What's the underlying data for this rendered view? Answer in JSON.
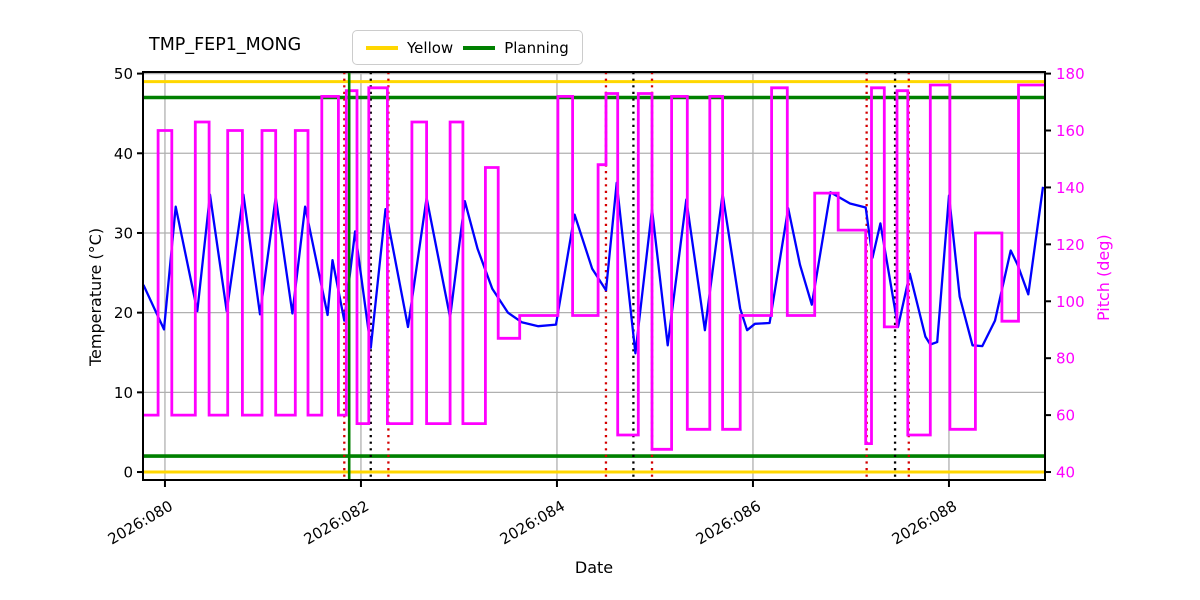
{
  "chart_data": {
    "type": "line",
    "title": "TMP_FEP1_MONG",
    "xlabel": "Date",
    "ylabel_left": "Temperature (°C)",
    "ylabel_right": "Pitch (deg)",
    "grid": true,
    "xlim": [
      79.776,
      88.98
    ],
    "ylim_temp": [
      -1,
      50.2
    ],
    "pitch_axis_mapping": "pitch = temp * 2.8 + 40",
    "x_ticks": {
      "days": [
        80,
        82,
        84,
        86,
        88
      ],
      "labels": [
        "2026:080",
        "2026:082",
        "2026:084",
        "2026:086",
        "2026:088"
      ]
    },
    "temp_ticks": [
      0,
      10,
      20,
      30,
      40,
      50
    ],
    "pitch_ticks": [
      40,
      60,
      80,
      100,
      120,
      140,
      160,
      180
    ],
    "colors": {
      "temperature": "#0000FF",
      "pitch": "#FF00FF",
      "yellow_limit": "#FFD700",
      "planning_limit": "#008000",
      "event_red": "#D40000",
      "event_black": "#000000",
      "grid": "#B0B0B0",
      "pitch_tick_labels": "#FF00FF"
    },
    "legend": [
      {
        "label": "Yellow",
        "color": "#FFD700"
      },
      {
        "label": "Planning",
        "color": "#008000"
      }
    ],
    "limit_lines": [
      {
        "name": "yellow-upper",
        "value": 49,
        "color": "#FFD700",
        "width": 3
      },
      {
        "name": "yellow-lower",
        "value": 0,
        "color": "#FFD700",
        "width": 3
      },
      {
        "name": "planning-upper",
        "value": 47,
        "color": "#008000",
        "width": 3.6
      },
      {
        "name": "planning-lower",
        "value": 2,
        "color": "#008000",
        "width": 3.6
      }
    ],
    "event_vlines": [
      {
        "day": 81.83,
        "color": "#D40000",
        "style": "dotted"
      },
      {
        "day": 81.88,
        "color": "#008000",
        "style": "solid"
      },
      {
        "day": 82.1,
        "color": "#000000",
        "style": "dotted"
      },
      {
        "day": 82.28,
        "color": "#D40000",
        "style": "dotted"
      },
      {
        "day": 84.5,
        "color": "#D40000",
        "style": "dotted"
      },
      {
        "day": 84.78,
        "color": "#000000",
        "style": "dotted"
      },
      {
        "day": 84.97,
        "color": "#D40000",
        "style": "dotted"
      },
      {
        "day": 87.16,
        "color": "#D40000",
        "style": "dotted"
      },
      {
        "day": 87.45,
        "color": "#000000",
        "style": "dotted"
      },
      {
        "day": 87.59,
        "color": "#D40000",
        "style": "dotted"
      }
    ],
    "series": [
      {
        "name": "Temperature",
        "axis": "left",
        "style": "line",
        "color": "#0000FF",
        "points": [
          [
            79.78,
            23.5
          ],
          [
            79.99,
            17.9
          ],
          [
            80.11,
            33.3
          ],
          [
            80.33,
            20.2
          ],
          [
            80.46,
            34.8
          ],
          [
            80.63,
            20.2
          ],
          [
            80.8,
            34.8
          ],
          [
            80.97,
            19.8
          ],
          [
            81.13,
            34.5
          ],
          [
            81.3,
            19.9
          ],
          [
            81.43,
            33.3
          ],
          [
            81.66,
            19.7
          ],
          [
            81.71,
            26.6
          ],
          [
            81.83,
            19.0
          ],
          [
            81.94,
            30.2
          ],
          [
            82.1,
            15.6
          ],
          [
            82.25,
            33.0
          ],
          [
            82.48,
            18.2
          ],
          [
            82.67,
            34.4
          ],
          [
            82.91,
            19.4
          ],
          [
            83.06,
            34.0
          ],
          [
            83.19,
            28.0
          ],
          [
            83.34,
            23.0
          ],
          [
            83.5,
            20.0
          ],
          [
            83.64,
            18.8
          ],
          [
            83.81,
            18.3
          ],
          [
            83.99,
            18.5
          ],
          [
            84.18,
            32.3
          ],
          [
            84.36,
            25.5
          ],
          [
            84.5,
            22.8
          ],
          [
            84.61,
            36.3
          ],
          [
            84.8,
            14.9
          ],
          [
            84.97,
            33.0
          ],
          [
            85.13,
            15.9
          ],
          [
            85.32,
            34.2
          ],
          [
            85.51,
            17.8
          ],
          [
            85.69,
            34.9
          ],
          [
            85.87,
            20.5
          ],
          [
            85.94,
            17.8
          ],
          [
            86.02,
            18.6
          ],
          [
            86.17,
            18.7
          ],
          [
            86.36,
            33.1
          ],
          [
            86.48,
            26.0
          ],
          [
            86.6,
            21.0
          ],
          [
            86.79,
            35.1
          ],
          [
            86.99,
            33.7
          ],
          [
            87.15,
            33.2
          ],
          [
            87.22,
            26.9
          ],
          [
            87.3,
            31.2
          ],
          [
            87.48,
            18.2
          ],
          [
            87.6,
            24.9
          ],
          [
            87.76,
            17.0
          ],
          [
            87.81,
            16.0
          ],
          [
            87.88,
            16.3
          ],
          [
            88.0,
            34.7
          ],
          [
            88.11,
            22.0
          ],
          [
            88.24,
            15.9
          ],
          [
            88.34,
            15.8
          ],
          [
            88.47,
            19.0
          ],
          [
            88.57,
            24.5
          ],
          [
            88.63,
            27.8
          ],
          [
            88.7,
            26.0
          ],
          [
            88.81,
            22.3
          ],
          [
            88.96,
            35.8
          ]
        ]
      },
      {
        "name": "Pitch",
        "axis": "right",
        "style": "step-after",
        "color": "#FF00FF",
        "end_day": 88.98,
        "points": [
          [
            79.78,
            60
          ],
          [
            79.93,
            160
          ],
          [
            80.07,
            60
          ],
          [
            80.31,
            163
          ],
          [
            80.45,
            60
          ],
          [
            80.64,
            160
          ],
          [
            80.79,
            60
          ],
          [
            80.99,
            160
          ],
          [
            81.13,
            60
          ],
          [
            81.33,
            160
          ],
          [
            81.46,
            60
          ],
          [
            81.6,
            172
          ],
          [
            81.77,
            60
          ],
          [
            81.85,
            174
          ],
          [
            81.96,
            57
          ],
          [
            82.08,
            175
          ],
          [
            82.27,
            57
          ],
          [
            82.52,
            163
          ],
          [
            82.67,
            57
          ],
          [
            82.91,
            163
          ],
          [
            83.04,
            57
          ],
          [
            83.27,
            147
          ],
          [
            83.4,
            87
          ],
          [
            83.62,
            95
          ],
          [
            84.01,
            172
          ],
          [
            84.16,
            95
          ],
          [
            84.42,
            148
          ],
          [
            84.5,
            173
          ],
          [
            84.62,
            53
          ],
          [
            84.83,
            173
          ],
          [
            84.97,
            48
          ],
          [
            85.17,
            172
          ],
          [
            85.33,
            55
          ],
          [
            85.56,
            172
          ],
          [
            85.69,
            55
          ],
          [
            85.87,
            95
          ],
          [
            86.19,
            175
          ],
          [
            86.35,
            95
          ],
          [
            86.63,
            138
          ],
          [
            86.87,
            125
          ],
          [
            87.15,
            50
          ],
          [
            87.21,
            175
          ],
          [
            87.34,
            91
          ],
          [
            87.47,
            174
          ],
          [
            87.58,
            53
          ],
          [
            87.81,
            176
          ],
          [
            88.01,
            55
          ],
          [
            88.27,
            124
          ],
          [
            88.54,
            93
          ],
          [
            88.71,
            176
          ]
        ]
      }
    ]
  }
}
